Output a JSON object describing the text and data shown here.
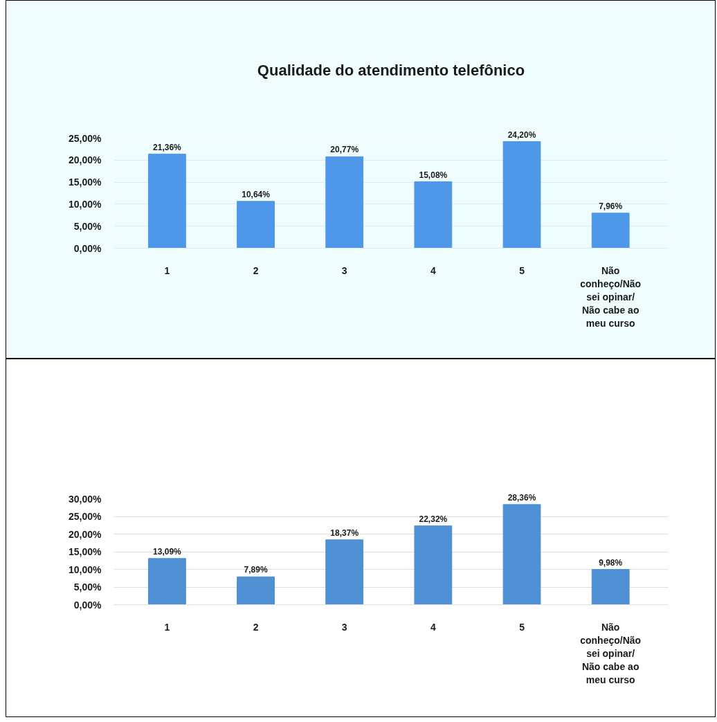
{
  "chart_data": [
    {
      "type": "bar",
      "title": "Qualidade do atendimento telefônico",
      "categories": [
        "1",
        "2",
        "3",
        "4",
        "5",
        "Não conheço/Não sei opinar/ Não cabe ao meu curso"
      ],
      "values": [
        21.36,
        10.64,
        20.77,
        15.08,
        24.2,
        7.96
      ],
      "value_labels": [
        "21,36%",
        "10,64%",
        "20,77%",
        "15,08%",
        "24,20%",
        "7,96%"
      ],
      "color": "#4f97e8",
      "ylim": [
        0,
        25
      ],
      "yticks": [
        {
          "value": 0,
          "label": "0,00%"
        },
        {
          "value": 5,
          "label": "5,00%"
        },
        {
          "value": 10,
          "label": "10,00%"
        },
        {
          "value": 15,
          "label": "15,00%"
        },
        {
          "value": 20,
          "label": "20,00%"
        },
        {
          "value": 25,
          "label": "25,00%"
        }
      ],
      "grid": "y"
    },
    {
      "type": "bar",
      "categories": [
        "1",
        "2",
        "3",
        "4",
        "5",
        "Não conheço/Não sei opinar/ Não cabe ao meu curso"
      ],
      "values": [
        13.09,
        7.89,
        18.37,
        22.32,
        28.36,
        9.98
      ],
      "value_labels": [
        "13,09%",
        "7,89%",
        "18,37%",
        "22,32%",
        "28,36%",
        "9,98%"
      ],
      "color": "#4f8fd4",
      "ylim": [
        0,
        30
      ],
      "yticks": [
        {
          "value": 0,
          "label": "0,00%"
        },
        {
          "value": 5,
          "label": "5,00%"
        },
        {
          "value": 10,
          "label": "10,00%"
        },
        {
          "value": 15,
          "label": "15,00%"
        },
        {
          "value": 20,
          "label": "20,00%"
        },
        {
          "value": 25,
          "label": "25,00%"
        },
        {
          "value": 30,
          "label": "30,00%"
        }
      ],
      "grid": "y"
    }
  ]
}
